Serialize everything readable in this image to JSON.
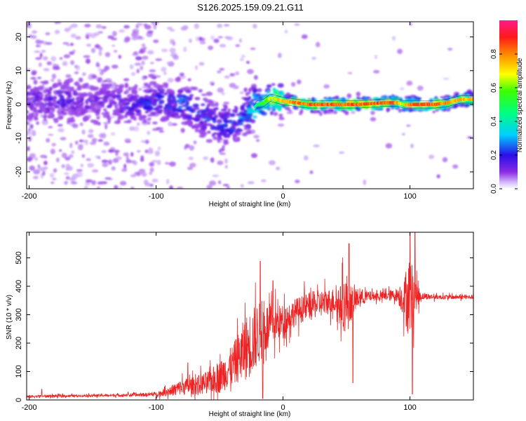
{
  "figure": {
    "title": "S126.2025.159.09.21.G11"
  },
  "chart_data": [
    {
      "type": "heatmap",
      "title": "S126.2025.159.09.21.G11",
      "xlabel": "Height of straight line (km)",
      "ylabel": "Frequency (Hz)",
      "xlim": [
        -202,
        150
      ],
      "ylim": [
        -25,
        24.5
      ],
      "x_ticks": [
        -200,
        -100,
        0,
        100
      ],
      "y_ticks": [
        20,
        10,
        0,
        -10,
        -20
      ],
      "grid": false,
      "colormap": "rainbow (purple → blue → cyan → green → yellow → orange → red → magenta)",
      "colorbar": {
        "label": "Normalized spectral amplitude",
        "range": [
          0,
          1
        ],
        "ticks": [
          "0.0",
          "0.2",
          "0.4",
          "0.6",
          "0.8"
        ]
      },
      "ridge": {
        "description": "frequency ridge of the strongest spectral amplitude",
        "x": [
          -200,
          -180,
          -160,
          -140,
          -120,
          -100,
          -90,
          -80,
          -70,
          -60,
          -50,
          -40,
          -30,
          -20,
          -15,
          -10,
          -5,
          0,
          10,
          20,
          40,
          60,
          80,
          90,
          95,
          100,
          110,
          120,
          130,
          140,
          150
        ],
        "y": [
          1,
          1.5,
          0.5,
          1,
          0,
          1,
          0,
          1,
          -2,
          -4,
          -6,
          -5,
          -3,
          0,
          0.5,
          2,
          1.5,
          1,
          0.5,
          0,
          0,
          0,
          0.5,
          0.5,
          0,
          0,
          0,
          0,
          0.5,
          1.5,
          1.5
        ],
        "amplitude": [
          0.15,
          0.2,
          0.15,
          0.15,
          0.2,
          0.25,
          0.25,
          0.3,
          0.25,
          0.25,
          0.3,
          0.3,
          0.3,
          0.5,
          0.6,
          0.7,
          0.75,
          0.8,
          0.85,
          0.9,
          0.9,
          0.9,
          0.9,
          0.85,
          0.7,
          0.9,
          0.9,
          0.9,
          0.85,
          0.8,
          0.8
        ]
      }
    },
    {
      "type": "line",
      "xlabel": "Height of straight line (km)",
      "ylabel": "SNR (10 * v/v)",
      "xlim": [
        -202,
        150
      ],
      "ylim": [
        0,
        590
      ],
      "x_ticks": [
        -200,
        -100,
        0,
        100
      ],
      "y_ticks": [
        0,
        100,
        200,
        300,
        400,
        500
      ],
      "grid": false,
      "series": [
        {
          "color": "#ee2222",
          "x": [
            -202,
            -180,
            -160,
            -140,
            -120,
            -100,
            -90,
            -80,
            -70,
            -60,
            -50,
            -40,
            -35,
            -30,
            -25,
            -20,
            -15,
            -10,
            -5,
            0,
            10,
            20,
            30,
            40,
            45,
            50,
            55,
            60,
            70,
            80,
            90,
            95,
            100,
            105,
            110,
            120,
            130,
            140,
            150
          ],
          "y": [
            12,
            14,
            15,
            16,
            17,
            20,
            30,
            45,
            50,
            60,
            80,
            120,
            150,
            180,
            200,
            230,
            250,
            260,
            270,
            280,
            310,
            330,
            340,
            350,
            330,
            340,
            345,
            360,
            365,
            365,
            370,
            355,
            360,
            365,
            365,
            362,
            362,
            362,
            362
          ],
          "amplitude": [
            6,
            6,
            5,
            6,
            6,
            10,
            20,
            35,
            40,
            50,
            70,
            90,
            110,
            140,
            150,
            140,
            120,
            100,
            80,
            70,
            60,
            60,
            60,
            55,
            90,
            140,
            60,
            40,
            20,
            20,
            30,
            80,
            200,
            60,
            15,
            10,
            10,
            10,
            10
          ]
        }
      ],
      "spikes": [
        {
          "x": -190,
          "y": 38
        },
        {
          "x": -122,
          "y": 28
        },
        {
          "x": -75,
          "y": 130
        },
        {
          "x": -18,
          "y": 488
        },
        {
          "x": -16,
          "y": 5
        },
        {
          "x": -8,
          "y": 420
        },
        {
          "x": 52,
          "y": 550
        },
        {
          "x": 55,
          "y": 60
        },
        {
          "x": 100,
          "y": 590
        },
        {
          "x": 102,
          "y": 20
        },
        {
          "x": 104,
          "y": 590
        }
      ]
    }
  ]
}
